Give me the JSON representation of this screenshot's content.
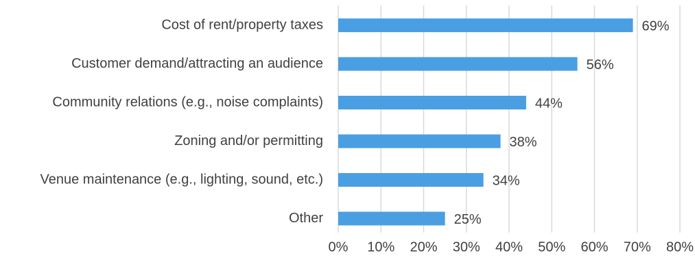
{
  "chart_data": {
    "type": "bar",
    "orientation": "horizontal",
    "title": "",
    "xlabel": "",
    "ylabel": "",
    "categories": [
      "Cost of rent/property taxes",
      "Customer demand/attracting an audience",
      "Community relations (e.g., noise complaints)",
      "Zoning and/or permitting",
      "Venue maintenance (e.g., lighting, sound, etc.)",
      "Other"
    ],
    "values": [
      69,
      56,
      44,
      38,
      34,
      25
    ],
    "data_labels": [
      "69%",
      "56%",
      "44%",
      "38%",
      "34%",
      "25%"
    ],
    "xlim": [
      0,
      80
    ],
    "x_ticks": [
      0,
      10,
      20,
      30,
      40,
      50,
      60,
      70,
      80
    ],
    "x_tick_labels": [
      "0%",
      "10%",
      "20%",
      "30%",
      "40%",
      "50%",
      "60%",
      "70%",
      "80%"
    ],
    "grid": true,
    "legend": "none",
    "colors": {
      "bar": "#4A9FE3",
      "grid": "#D9D9D9",
      "text": "#404040"
    }
  }
}
